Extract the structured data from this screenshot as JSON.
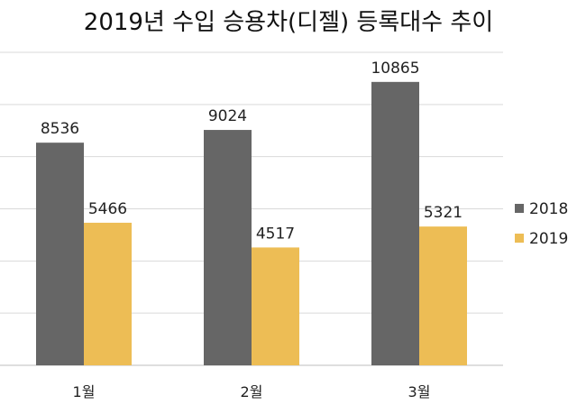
{
  "chart_data": {
    "type": "bar",
    "title": "2019년 수입 승용차(디젤) 등록대수 추이",
    "xlabel": "",
    "ylabel": "",
    "categories": [
      "1월",
      "2월",
      "3월"
    ],
    "series": [
      {
        "name": "2018",
        "color": "#666666",
        "values": [
          8536,
          9024,
          10865
        ]
      },
      {
        "name": "2019",
        "color": "#EDBD55",
        "values": [
          5466,
          4517,
          5321
        ]
      }
    ],
    "ylim": [
      0,
      12000
    ],
    "grid": true,
    "legend": "right",
    "show_data_labels": true
  }
}
